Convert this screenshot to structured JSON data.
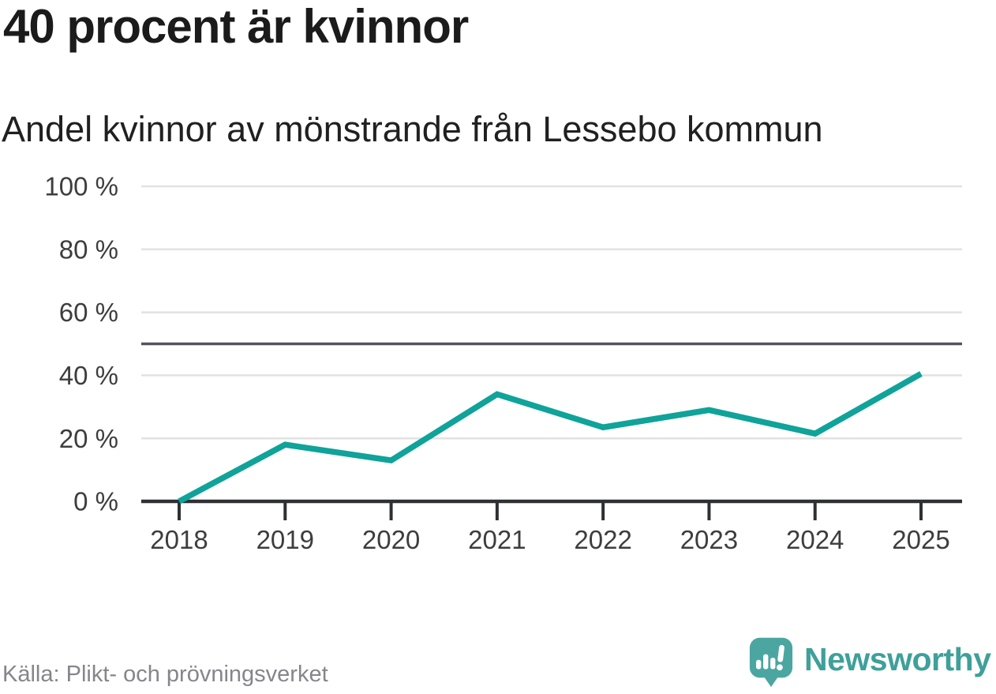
{
  "header": {
    "title": "40 procent är kvinnor",
    "subtitle": "Andel kvinnor av mönstrande från Lessebo kommun"
  },
  "chart_data": {
    "type": "line",
    "title": "40 procent är kvinnor",
    "subtitle": "Andel kvinnor av mönstrande från Lessebo kommun",
    "x": [
      "2018",
      "2019",
      "2020",
      "2021",
      "2022",
      "2023",
      "2024",
      "2025"
    ],
    "series": [
      {
        "name": "Andel kvinnor av mönstrande",
        "values": [
          0,
          18,
          13,
          34,
          23.5,
          29,
          21.5,
          40.5
        ]
      }
    ],
    "xlabel": "",
    "ylabel": "",
    "ylim": [
      0,
      100
    ],
    "yticks": [
      0,
      20,
      40,
      60,
      80,
      100
    ],
    "ytick_suffix": " %",
    "reference_line": 50,
    "grid": true,
    "legend": "none"
  },
  "footer": {
    "source": "Källa: Plikt- och prövningsverket",
    "brand": "Newsworthy"
  },
  "colors": {
    "line": "#0fa39a",
    "reference": "#54555a",
    "axis": "#2f3033",
    "grid": "#e2e2e2",
    "title_text": "#1b1b1b",
    "subtitle_text": "#202020",
    "tick_text": "#3d3d3d",
    "source_text": "#85858b",
    "brand_teal": "#3fa09a",
    "logo_fill": "#4ba6a1"
  }
}
